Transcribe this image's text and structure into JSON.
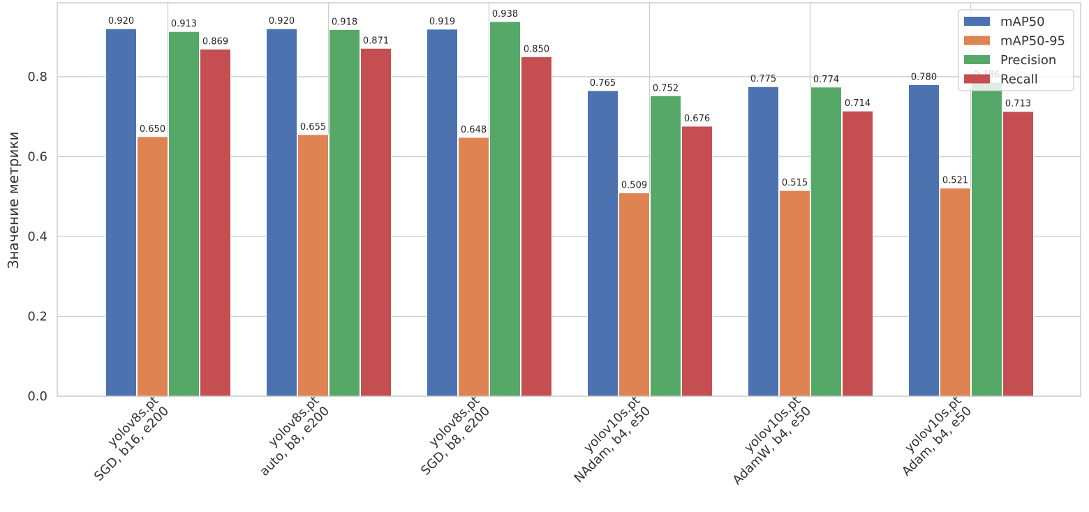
{
  "chart_data": {
    "type": "bar",
    "title": "",
    "xlabel": "",
    "ylabel": "Значение метрики",
    "ylim": [
      0,
      0.985
    ],
    "yticks": [
      "0.0",
      "0.2",
      "0.4",
      "0.6",
      "0.8"
    ],
    "grid": true,
    "legend_position": "top-right",
    "categories": [
      [
        "yolov8s.pt",
        "SGD, b16, e200"
      ],
      [
        "yolov8s.pt",
        "auto, b8, e200"
      ],
      [
        "yolov8s.pt",
        "SGD, b8, e200"
      ],
      [
        "yolov10s.pt",
        "NAdam, b4, e50"
      ],
      [
        "yolov10s.pt",
        "AdamW, b4, e50"
      ],
      [
        "yolov10s.pt",
        "Adam, b4, e50"
      ]
    ],
    "series": [
      {
        "name": "mAP50",
        "color": "#4c72b0",
        "values": [
          0.92,
          0.92,
          0.919,
          0.765,
          0.775,
          0.78
        ],
        "labels": [
          "0.920",
          "0.920",
          "0.919",
          "0.765",
          "0.775",
          "0.780"
        ]
      },
      {
        "name": "mAP50-95",
        "color": "#dd8452",
        "values": [
          0.65,
          0.655,
          0.648,
          0.509,
          0.515,
          0.521
        ],
        "labels": [
          "0.650",
          "0.655",
          "0.648",
          "0.509",
          "0.515",
          "0.521"
        ]
      },
      {
        "name": "Precision",
        "color": "#55a868",
        "values": [
          0.913,
          0.918,
          0.938,
          0.752,
          0.774,
          0.786
        ],
        "labels": [
          "0.913",
          "0.918",
          "0.938",
          "0.752",
          "0.774",
          "0.786"
        ]
      },
      {
        "name": "Recall",
        "color": "#c44e52",
        "values": [
          0.869,
          0.871,
          0.85,
          0.676,
          0.714,
          0.713
        ],
        "labels": [
          "0.869",
          "0.871",
          "0.850",
          "0.676",
          "0.714",
          "0.713"
        ]
      }
    ]
  }
}
